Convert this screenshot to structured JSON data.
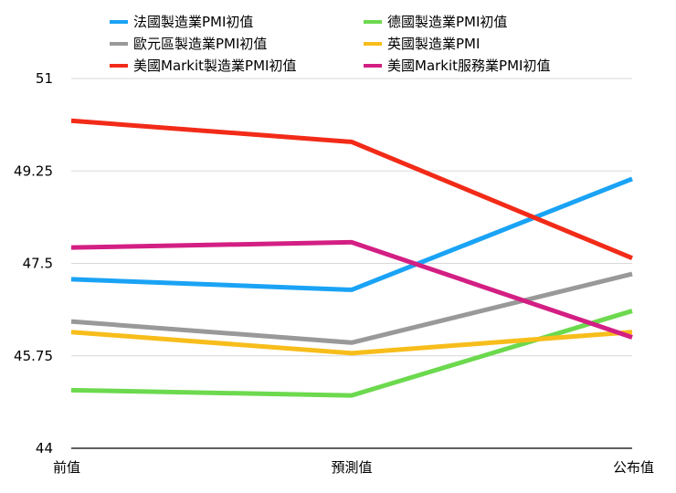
{
  "chart_data": {
    "type": "line",
    "title": "",
    "xlabel": "",
    "ylabel": "",
    "categories": [
      "前值",
      "預測值",
      "公布值"
    ],
    "ylim": [
      44,
      51
    ],
    "yticks": [
      "44",
      "45.75",
      "47.5",
      "49.25",
      "51"
    ],
    "grid": true,
    "legend": "top",
    "series": [
      {
        "name": "法國製造業PMI初值",
        "color": "#1aa3f5",
        "values": [
          47.2,
          47.0,
          49.1
        ]
      },
      {
        "name": "德國製造業PMI初值",
        "color": "#6cd94e",
        "values": [
          45.1,
          45.0,
          46.6
        ]
      },
      {
        "name": "歐元區製造業PMI初值",
        "color": "#999999",
        "values": [
          46.4,
          46.0,
          47.3
        ]
      },
      {
        "name": "英國製造業PMI",
        "color": "#f7bd1b",
        "values": [
          46.2,
          45.8,
          46.2
        ]
      },
      {
        "name": "美國Markit製造業PMI初值",
        "color": "#f22b18",
        "values": [
          50.2,
          49.8,
          47.6
        ]
      },
      {
        "name": "美國Markit服務業PMI初值",
        "color": "#d31f83",
        "values": [
          47.8,
          47.9,
          46.1
        ]
      }
    ]
  }
}
